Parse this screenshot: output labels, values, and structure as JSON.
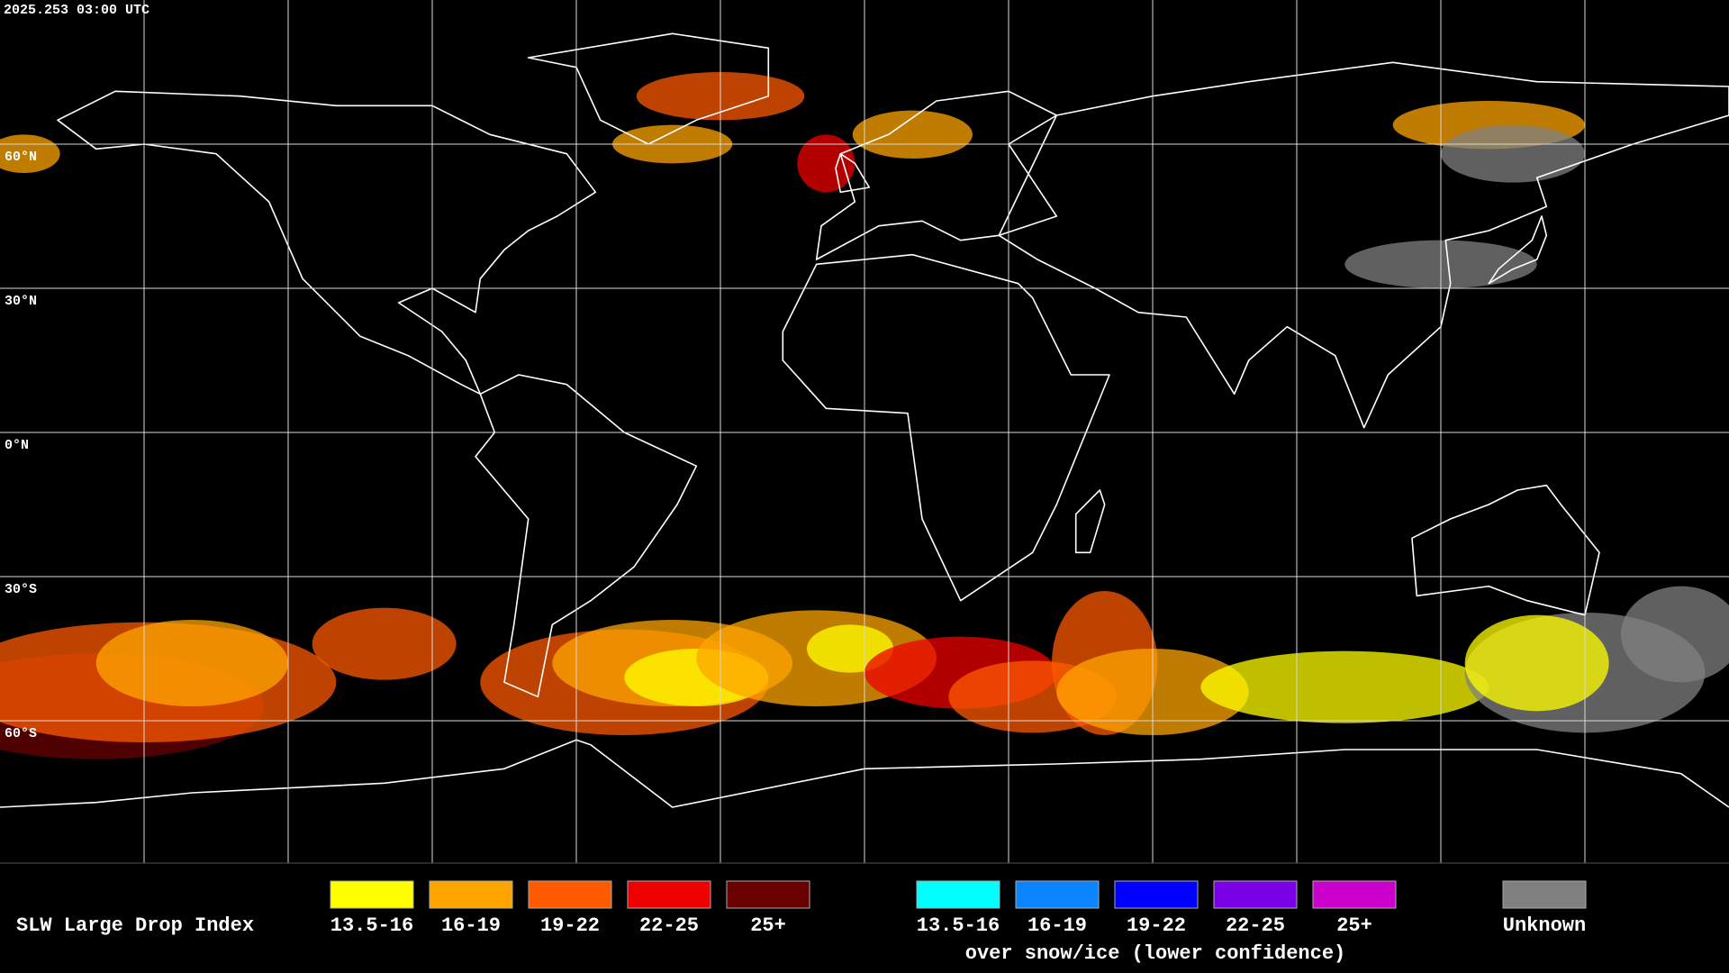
{
  "header": {
    "timestamp": "2025.253 03:00 UTC"
  },
  "map": {
    "latitude_labels": [
      "60°N",
      "30°N",
      "0°N",
      "30°S",
      "60°S"
    ]
  },
  "legend": {
    "title": "SLW Large Drop Index",
    "groups": [
      {
        "items": [
          {
            "label": "13.5-16",
            "color": "#ffff00"
          },
          {
            "label": "16-19",
            "color": "#ffa500"
          },
          {
            "label": "19-22",
            "color": "#ff5a00"
          },
          {
            "label": "22-25",
            "color": "#ee0000"
          },
          {
            "label": "25+",
            "color": "#6a0000"
          }
        ]
      },
      {
        "items": [
          {
            "label": "13.5-16",
            "color": "#00ffff"
          },
          {
            "label": "16-19",
            "color": "#0a84ff"
          },
          {
            "label": "19-22",
            "color": "#0000ff"
          },
          {
            "label": "22-25",
            "color": "#7a00e6"
          },
          {
            "label": "25+",
            "color": "#cc00cc"
          }
        ],
        "note": "over snow/ice (lower confidence)"
      },
      {
        "items": [
          {
            "label": "Unknown",
            "color": "#808080"
          }
        ]
      }
    ]
  }
}
